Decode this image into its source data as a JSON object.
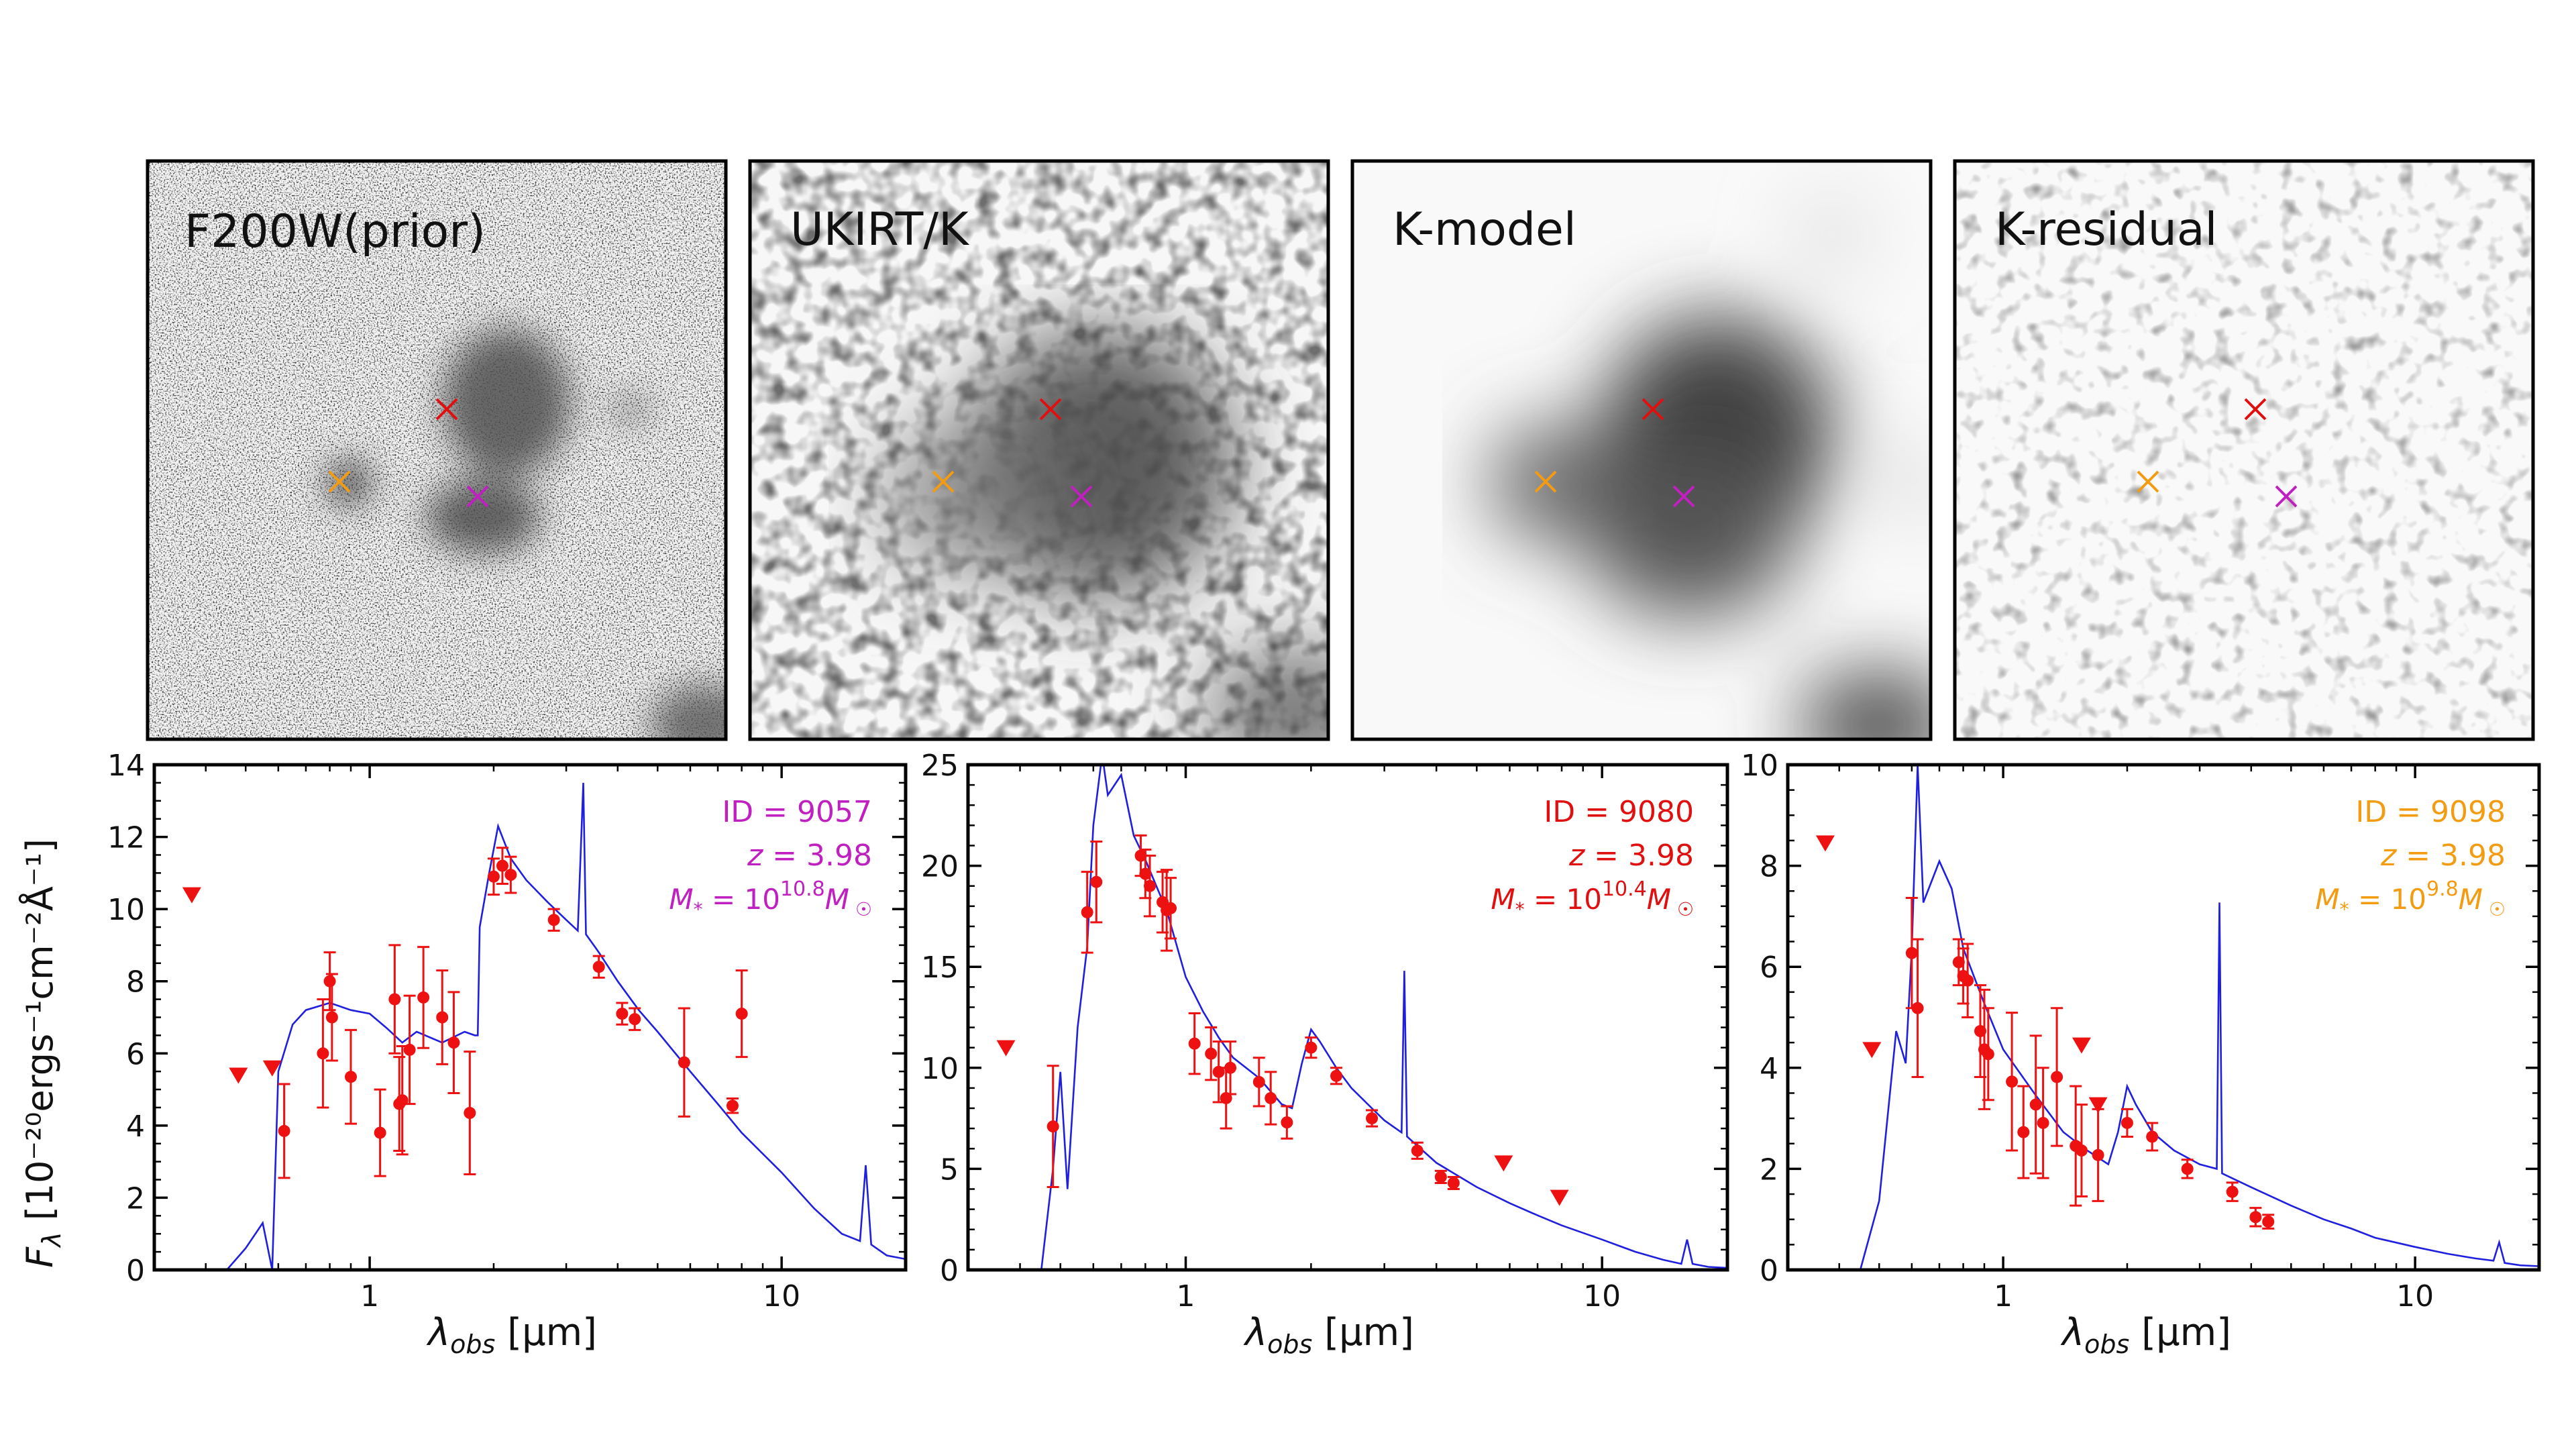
{
  "figure": {
    "image_panels": [
      {
        "label": "F200W(prior)"
      },
      {
        "label": "UKIRT/K"
      },
      {
        "label": "K-model"
      },
      {
        "label": "K-residual"
      }
    ],
    "markers": [
      {
        "source_id": "9057",
        "color": "#c020c0"
      },
      {
        "source_id": "9080",
        "color": "#e01010"
      },
      {
        "source_id": "9098",
        "color": "#f39c12"
      }
    ],
    "ylabel_main": "F",
    "ylabel_sub": "λ",
    "ylabel_rest": " [10⁻²⁰ergs⁻¹cm⁻²Å⁻¹]",
    "xlabel_main": "λ",
    "xlabel_sub": "obs",
    "xlabel_rest": " [μm]"
  },
  "chart_data": [
    {
      "type": "scatter",
      "id_label": "ID = 9057",
      "z_label": "z = 3.98",
      "mass_label": "M* = 10^10.8 M☉",
      "mass_exponent": "10.8",
      "label_color": "#c020c0",
      "x_scale": "log",
      "xlim": [
        0.3,
        20
      ],
      "ylim": [
        0,
        14
      ],
      "yticks": [
        "0",
        "2",
        "4",
        "6",
        "8",
        "10",
        "12",
        "14"
      ],
      "xticks": [
        "1",
        "10"
      ],
      "detections": [
        {
          "x": 0.62,
          "y": 3.85,
          "err": 1.3
        },
        {
          "x": 0.77,
          "y": 6.0,
          "err": 1.5
        },
        {
          "x": 0.8,
          "y": 8.0,
          "err": 0.8
        },
        {
          "x": 0.81,
          "y": 7.0,
          "err": 1.2
        },
        {
          "x": 0.9,
          "y": 5.35,
          "err": 1.3
        },
        {
          "x": 1.06,
          "y": 3.8,
          "err": 1.2
        },
        {
          "x": 1.15,
          "y": 7.5,
          "err": 1.5
        },
        {
          "x": 1.18,
          "y": 4.6,
          "err": 1.3
        },
        {
          "x": 1.2,
          "y": 4.7,
          "err": 1.5
        },
        {
          "x": 1.25,
          "y": 6.1,
          "err": 1.5
        },
        {
          "x": 1.35,
          "y": 7.55,
          "err": 1.4
        },
        {
          "x": 1.5,
          "y": 7.0,
          "err": 1.3
        },
        {
          "x": 1.6,
          "y": 6.3,
          "err": 1.4
        },
        {
          "x": 1.75,
          "y": 4.35,
          "err": 1.7
        },
        {
          "x": 2.0,
          "y": 10.9,
          "err": 0.5
        },
        {
          "x": 2.1,
          "y": 11.2,
          "err": 0.5
        },
        {
          "x": 2.2,
          "y": 10.95,
          "err": 0.5
        },
        {
          "x": 2.8,
          "y": 9.7,
          "err": 0.3
        },
        {
          "x": 3.6,
          "y": 8.4,
          "err": 0.3
        },
        {
          "x": 4.1,
          "y": 7.1,
          "err": 0.3
        },
        {
          "x": 4.4,
          "y": 6.95,
          "err": 0.3
        },
        {
          "x": 5.8,
          "y": 5.75,
          "err": 1.5
        },
        {
          "x": 7.6,
          "y": 4.55,
          "err": 0.2
        },
        {
          "x": 8.0,
          "y": 7.1,
          "err": 1.2
        }
      ],
      "upper_limits": [
        {
          "x": 0.37,
          "y": 10.4
        },
        {
          "x": 0.48,
          "y": 5.4
        },
        {
          "x": 0.58,
          "y": 5.6
        }
      ],
      "model": [
        [
          0.45,
          0.0
        ],
        [
          0.5,
          0.6
        ],
        [
          0.55,
          1.3
        ],
        [
          0.58,
          0.0
        ],
        [
          0.6,
          5.5
        ],
        [
          0.65,
          6.8
        ],
        [
          0.7,
          7.2
        ],
        [
          0.8,
          7.4
        ],
        [
          0.9,
          7.2
        ],
        [
          1.0,
          7.1
        ],
        [
          1.1,
          6.7
        ],
        [
          1.2,
          6.3
        ],
        [
          1.3,
          6.6
        ],
        [
          1.5,
          6.3
        ],
        [
          1.7,
          6.6
        ],
        [
          1.8,
          6.5
        ],
        [
          1.83,
          6.5
        ],
        [
          1.85,
          9.5
        ],
        [
          1.95,
          11.0
        ],
        [
          2.05,
          12.3
        ],
        [
          2.2,
          11.4
        ],
        [
          2.4,
          10.8
        ],
        [
          2.7,
          10.2
        ],
        [
          3.0,
          9.7
        ],
        [
          3.2,
          9.4
        ],
        [
          3.3,
          13.5
        ],
        [
          3.35,
          9.3
        ],
        [
          3.6,
          8.8
        ],
        [
          4.0,
          8.0
        ],
        [
          4.5,
          7.2
        ],
        [
          5.0,
          6.6
        ],
        [
          6.0,
          5.5
        ],
        [
          7.0,
          4.6
        ],
        [
          8.0,
          3.8
        ],
        [
          10.0,
          2.7
        ],
        [
          12.0,
          1.7
        ],
        [
          14.0,
          1.0
        ],
        [
          15.5,
          0.8
        ],
        [
          16.0,
          2.9
        ],
        [
          16.5,
          0.7
        ],
        [
          18.0,
          0.4
        ],
        [
          20.0,
          0.3
        ]
      ]
    },
    {
      "type": "scatter",
      "id_label": "ID = 9080",
      "z_label": "z = 3.98",
      "mass_label": "M* = 10^10.4 M☉",
      "mass_exponent": "10.4",
      "label_color": "#e01010",
      "x_scale": "log",
      "xlim": [
        0.3,
        20
      ],
      "ylim": [
        0,
        25
      ],
      "yticks": [
        "0",
        "5",
        "10",
        "15",
        "20",
        "25"
      ],
      "xticks": [
        "1",
        "10"
      ],
      "detections": [
        {
          "x": 0.48,
          "y": 7.1,
          "err": 3.0
        },
        {
          "x": 0.58,
          "y": 17.7,
          "err": 2.0
        },
        {
          "x": 0.61,
          "y": 19.2,
          "err": 2.0
        },
        {
          "x": 0.78,
          "y": 20.5,
          "err": 1.0
        },
        {
          "x": 0.8,
          "y": 19.6,
          "err": 1.2
        },
        {
          "x": 0.82,
          "y": 19.0,
          "err": 1.5
        },
        {
          "x": 0.88,
          "y": 18.2,
          "err": 1.5
        },
        {
          "x": 0.9,
          "y": 17.8,
          "err": 2.0
        },
        {
          "x": 0.92,
          "y": 17.9,
          "err": 1.5
        },
        {
          "x": 1.05,
          "y": 11.2,
          "err": 1.5
        },
        {
          "x": 1.15,
          "y": 10.7,
          "err": 1.3
        },
        {
          "x": 1.2,
          "y": 9.8,
          "err": 1.5
        },
        {
          "x": 1.25,
          "y": 8.5,
          "err": 1.5
        },
        {
          "x": 1.28,
          "y": 10.0,
          "err": 1.3
        },
        {
          "x": 1.5,
          "y": 9.3,
          "err": 1.2
        },
        {
          "x": 1.6,
          "y": 8.5,
          "err": 1.3
        },
        {
          "x": 1.75,
          "y": 7.3,
          "err": 0.8
        },
        {
          "x": 2.0,
          "y": 11.0,
          "err": 0.5
        },
        {
          "x": 2.3,
          "y": 9.6,
          "err": 0.4
        },
        {
          "x": 2.8,
          "y": 7.5,
          "err": 0.4
        },
        {
          "x": 3.6,
          "y": 5.9,
          "err": 0.4
        },
        {
          "x": 4.1,
          "y": 4.6,
          "err": 0.3
        },
        {
          "x": 4.4,
          "y": 4.3,
          "err": 0.3
        }
      ],
      "upper_limits": [
        {
          "x": 0.37,
          "y": 11.0
        },
        {
          "x": 5.8,
          "y": 5.3
        },
        {
          "x": 7.9,
          "y": 3.6
        }
      ],
      "model": [
        [
          0.45,
          0.0
        ],
        [
          0.48,
          5.0
        ],
        [
          0.5,
          9.8
        ],
        [
          0.52,
          4.0
        ],
        [
          0.55,
          12.0
        ],
        [
          0.58,
          16.0
        ],
        [
          0.6,
          22.0
        ],
        [
          0.63,
          25.5
        ],
        [
          0.65,
          23.5
        ],
        [
          0.7,
          24.5
        ],
        [
          0.75,
          21.5
        ],
        [
          0.8,
          20.3
        ],
        [
          0.85,
          19.0
        ],
        [
          0.9,
          17.8
        ],
        [
          1.0,
          14.5
        ],
        [
          1.1,
          12.8
        ],
        [
          1.2,
          11.5
        ],
        [
          1.3,
          10.5
        ],
        [
          1.5,
          9.5
        ],
        [
          1.7,
          8.2
        ],
        [
          1.8,
          8.0
        ],
        [
          1.9,
          10.2
        ],
        [
          2.0,
          11.9
        ],
        [
          2.1,
          11.3
        ],
        [
          2.3,
          10.0
        ],
        [
          2.5,
          9.0
        ],
        [
          2.8,
          8.0
        ],
        [
          3.0,
          7.4
        ],
        [
          3.3,
          6.8
        ],
        [
          3.35,
          14.8
        ],
        [
          3.4,
          6.6
        ],
        [
          4.0,
          5.3
        ],
        [
          5.0,
          4.1
        ],
        [
          6.0,
          3.3
        ],
        [
          7.0,
          2.7
        ],
        [
          8.0,
          2.2
        ],
        [
          10.0,
          1.5
        ],
        [
          12.0,
          0.9
        ],
        [
          14.0,
          0.5
        ],
        [
          15.5,
          0.3
        ],
        [
          16.0,
          1.5
        ],
        [
          16.5,
          0.3
        ],
        [
          18.0,
          0.15
        ],
        [
          20.0,
          0.1
        ]
      ]
    },
    {
      "type": "scatter",
      "id_label": "ID = 9098",
      "z_label": "z = 3.98",
      "mass_label": "M* = 10^9.8 M☉",
      "mass_exponent": "9.8",
      "label_color": "#f39c12",
      "x_scale": "log",
      "xlim": [
        0.3,
        20
      ],
      "ylim": [
        0,
        11
      ],
      "yticks": [
        "0",
        "2",
        "4",
        "6",
        "8",
        "10"
      ],
      "xticks": [
        "1",
        "10"
      ],
      "detections": [
        {
          "x": 0.6,
          "y": 6.9,
          "err": 1.2
        },
        {
          "x": 0.62,
          "y": 5.7,
          "err": 1.5
        },
        {
          "x": 0.78,
          "y": 6.7,
          "err": 0.5
        },
        {
          "x": 0.8,
          "y": 6.4,
          "err": 0.6
        },
        {
          "x": 0.82,
          "y": 6.3,
          "err": 0.8
        },
        {
          "x": 0.88,
          "y": 5.2,
          "err": 1.0
        },
        {
          "x": 0.9,
          "y": 4.8,
          "err": 1.3
        },
        {
          "x": 0.92,
          "y": 4.7,
          "err": 1.0
        },
        {
          "x": 1.05,
          "y": 4.1,
          "err": 1.5
        },
        {
          "x": 1.12,
          "y": 3.0,
          "err": 1.0
        },
        {
          "x": 1.2,
          "y": 3.6,
          "err": 1.5
        },
        {
          "x": 1.25,
          "y": 3.2,
          "err": 1.2
        },
        {
          "x": 1.35,
          "y": 4.2,
          "err": 1.5
        },
        {
          "x": 1.5,
          "y": 2.7,
          "err": 1.3
        },
        {
          "x": 1.55,
          "y": 2.6,
          "err": 1.0
        },
        {
          "x": 1.7,
          "y": 2.5,
          "err": 1.0
        },
        {
          "x": 2.0,
          "y": 3.2,
          "err": 0.3
        },
        {
          "x": 2.3,
          "y": 2.9,
          "err": 0.3
        },
        {
          "x": 2.8,
          "y": 2.2,
          "err": 0.2
        },
        {
          "x": 3.6,
          "y": 1.7,
          "err": 0.2
        },
        {
          "x": 4.1,
          "y": 1.15,
          "err": 0.2
        },
        {
          "x": 4.4,
          "y": 1.05,
          "err": 0.15
        }
      ],
      "upper_limits": [
        {
          "x": 0.37,
          "y": 9.3
        },
        {
          "x": 0.48,
          "y": 4.8
        },
        {
          "x": 1.55,
          "y": 4.9
        },
        {
          "x": 1.7,
          "y": 3.6
        }
      ],
      "model": [
        [
          0.45,
          0.0
        ],
        [
          0.5,
          1.5
        ],
        [
          0.55,
          5.2
        ],
        [
          0.58,
          4.5
        ],
        [
          0.6,
          7.0
        ],
        [
          0.62,
          11.0
        ],
        [
          0.64,
          8.0
        ],
        [
          0.7,
          8.9
        ],
        [
          0.75,
          8.3
        ],
        [
          0.8,
          7.0
        ],
        [
          0.9,
          5.8
        ],
        [
          1.0,
          4.8
        ],
        [
          1.2,
          3.8
        ],
        [
          1.4,
          3.0
        ],
        [
          1.6,
          2.6
        ],
        [
          1.8,
          2.3
        ],
        [
          1.9,
          3.0
        ],
        [
          2.0,
          4.0
        ],
        [
          2.1,
          3.6
        ],
        [
          2.3,
          3.0
        ],
        [
          2.6,
          2.6
        ],
        [
          3.0,
          2.3
        ],
        [
          3.3,
          2.2
        ],
        [
          3.35,
          8.0
        ],
        [
          3.4,
          2.1
        ],
        [
          4.0,
          1.8
        ],
        [
          5.0,
          1.4
        ],
        [
          6.0,
          1.1
        ],
        [
          7.0,
          0.9
        ],
        [
          8.0,
          0.7
        ],
        [
          10.0,
          0.5
        ],
        [
          12.0,
          0.35
        ],
        [
          14.0,
          0.25
        ],
        [
          15.5,
          0.2
        ],
        [
          16.0,
          0.6
        ],
        [
          16.5,
          0.15
        ],
        [
          18.0,
          0.1
        ],
        [
          20.0,
          0.08
        ]
      ]
    }
  ]
}
